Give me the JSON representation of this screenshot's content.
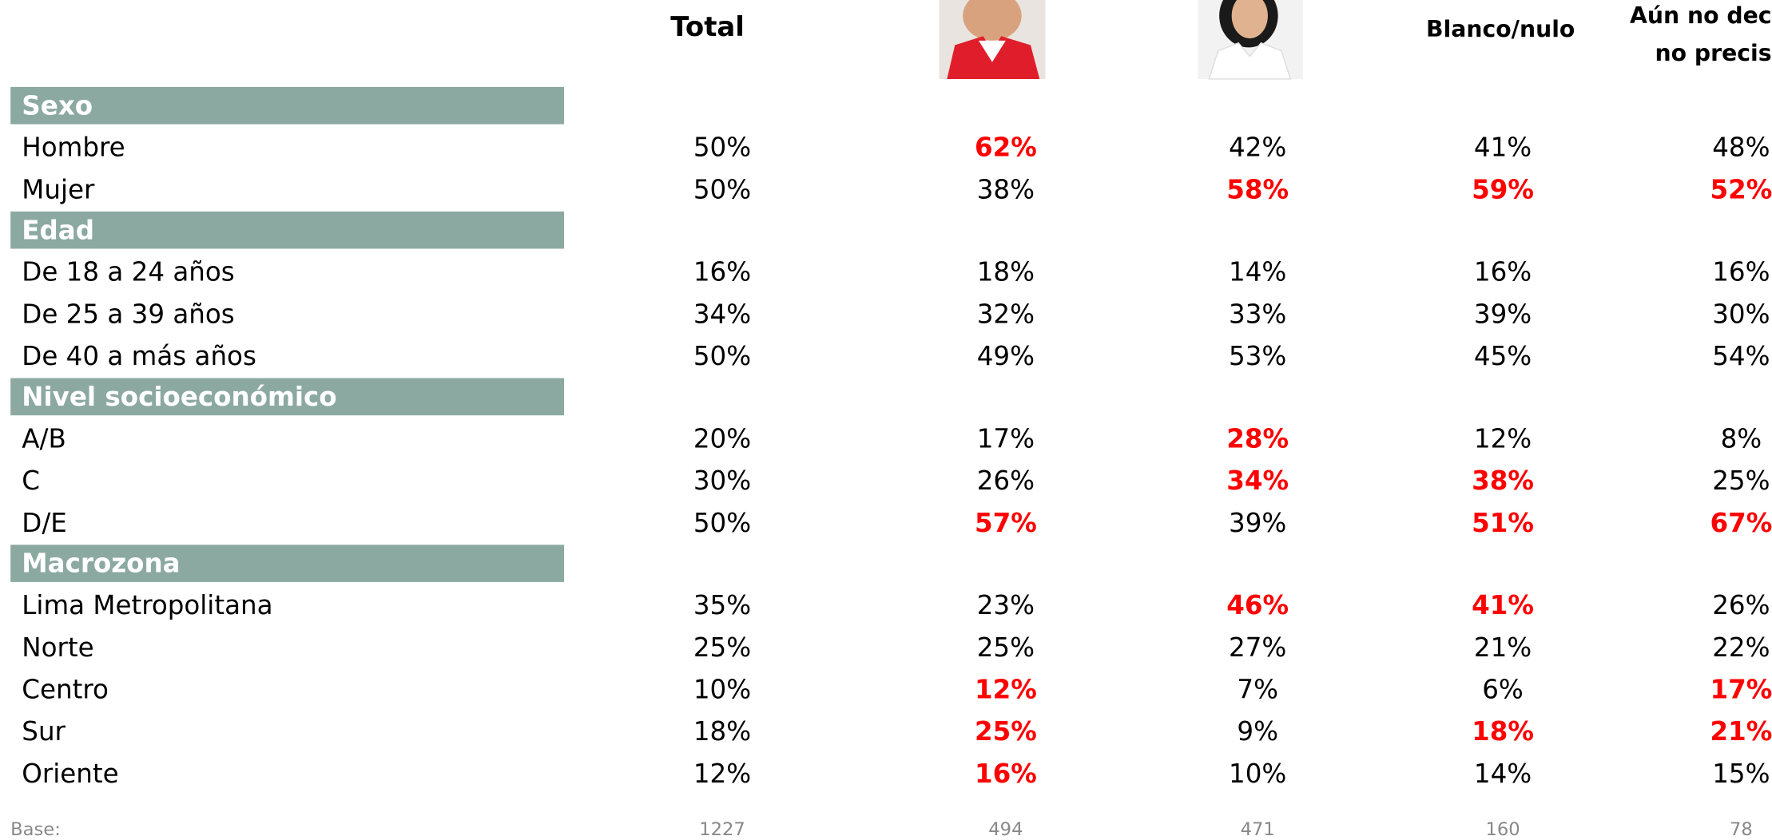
{
  "header": {
    "total": "Total",
    "blank": "Blanco/nulo",
    "undecided": [
      "Aún no dec",
      "no precis"
    ]
  },
  "highlight_color": "#ff0000",
  "sections": [
    {
      "title": "Sexo",
      "rows": [
        {
          "label": "Hombre",
          "cells": [
            "50%",
            "62%",
            "42%",
            "41%",
            "48%"
          ],
          "highlight": [
            1
          ]
        },
        {
          "label": "Mujer",
          "cells": [
            "50%",
            "38%",
            "58%",
            "59%",
            "52%"
          ],
          "highlight": [
            2,
            3,
            4
          ]
        }
      ]
    },
    {
      "title": "Edad",
      "rows": [
        {
          "label": "De 18 a 24 años",
          "cells": [
            "16%",
            "18%",
            "14%",
            "16%",
            "16%"
          ],
          "highlight": []
        },
        {
          "label": "De 25 a 39 años",
          "cells": [
            "34%",
            "32%",
            "33%",
            "39%",
            "30%"
          ],
          "highlight": []
        },
        {
          "label": "De 40 a más años",
          "cells": [
            "50%",
            "49%",
            "53%",
            "45%",
            "54%"
          ],
          "highlight": []
        }
      ]
    },
    {
      "title": "Nivel socioeconómico",
      "rows": [
        {
          "label": "A/B",
          "cells": [
            "20%",
            "17%",
            "28%",
            "12%",
            "8%"
          ],
          "highlight": [
            2
          ]
        },
        {
          "label": "C",
          "cells": [
            "30%",
            "26%",
            "34%",
            "38%",
            "25%"
          ],
          "highlight": [
            2,
            3
          ]
        },
        {
          "label": "D/E",
          "cells": [
            "50%",
            "57%",
            "39%",
            "51%",
            "67%"
          ],
          "highlight": [
            1,
            3,
            4
          ]
        }
      ]
    },
    {
      "title": "Macrozona",
      "rows": [
        {
          "label": "Lima Metropolitana",
          "cells": [
            "35%",
            "23%",
            "46%",
            "41%",
            "26%"
          ],
          "highlight": [
            2,
            3
          ]
        },
        {
          "label": "Norte",
          "cells": [
            "25%",
            "25%",
            "27%",
            "21%",
            "22%"
          ],
          "highlight": []
        },
        {
          "label": "Centro",
          "cells": [
            "10%",
            "12%",
            "7%",
            "6%",
            "17%"
          ],
          "highlight": [
            1,
            4
          ]
        },
        {
          "label": "Sur",
          "cells": [
            "18%",
            "25%",
            "9%",
            "18%",
            "21%"
          ],
          "highlight": [
            1,
            3,
            4
          ]
        },
        {
          "label": "Oriente",
          "cells": [
            "12%",
            "16%",
            "10%",
            "14%",
            "15%"
          ],
          "highlight": [
            1
          ]
        }
      ]
    }
  ],
  "base": {
    "label": "Base:",
    "cells": [
      1227,
      494,
      471,
      160,
      78
    ]
  }
}
